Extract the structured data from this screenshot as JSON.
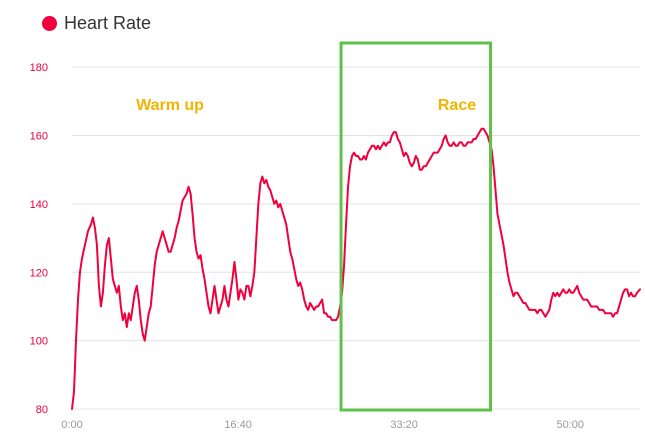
{
  "chart_data": {
    "type": "line",
    "xlabel": "",
    "ylabel": "",
    "ylim": [
      80,
      190
    ],
    "xlim": [
      0,
      57
    ],
    "x_unit": "minutes",
    "x_ticks": [
      {
        "value": 0,
        "label": "0:00"
      },
      {
        "value": 16.667,
        "label": "16:40"
      },
      {
        "value": 33.333,
        "label": "33:20"
      },
      {
        "value": 50,
        "label": "50:00"
      }
    ],
    "y_ticks": [
      80,
      100,
      120,
      140,
      160,
      180
    ],
    "grid": "horizontal",
    "legend": "top-left",
    "series": [
      {
        "name": "Heart Rate",
        "color": "#f0003c",
        "points": [
          [
            0.0,
            80
          ],
          [
            0.2,
            85
          ],
          [
            0.4,
            100
          ],
          [
            0.6,
            112
          ],
          [
            0.8,
            120
          ],
          [
            1.0,
            124
          ],
          [
            1.3,
            128
          ],
          [
            1.6,
            132
          ],
          [
            1.9,
            134
          ],
          [
            2.1,
            136
          ],
          [
            2.3,
            133
          ],
          [
            2.5,
            128
          ],
          [
            2.7,
            116
          ],
          [
            2.9,
            110
          ],
          [
            3.1,
            114
          ],
          [
            3.3,
            122
          ],
          [
            3.5,
            128
          ],
          [
            3.7,
            130
          ],
          [
            3.9,
            124
          ],
          [
            4.1,
            118
          ],
          [
            4.3,
            116
          ],
          [
            4.5,
            114
          ],
          [
            4.7,
            116
          ],
          [
            4.9,
            110
          ],
          [
            5.1,
            106
          ],
          [
            5.3,
            108
          ],
          [
            5.5,
            104
          ],
          [
            5.7,
            108
          ],
          [
            5.9,
            106
          ],
          [
            6.1,
            110
          ],
          [
            6.3,
            114
          ],
          [
            6.5,
            116
          ],
          [
            6.7,
            112
          ],
          [
            6.9,
            106
          ],
          [
            7.1,
            102
          ],
          [
            7.3,
            100
          ],
          [
            7.5,
            104
          ],
          [
            7.7,
            108
          ],
          [
            7.9,
            110
          ],
          [
            8.1,
            116
          ],
          [
            8.3,
            122
          ],
          [
            8.5,
            126
          ],
          [
            8.7,
            128
          ],
          [
            8.9,
            130
          ],
          [
            9.1,
            132
          ],
          [
            9.3,
            130
          ],
          [
            9.5,
            128
          ],
          [
            9.7,
            126
          ],
          [
            9.9,
            126
          ],
          [
            10.1,
            128
          ],
          [
            10.3,
            130
          ],
          [
            10.5,
            133
          ],
          [
            10.7,
            135
          ],
          [
            10.9,
            138
          ],
          [
            11.1,
            141
          ],
          [
            11.3,
            142
          ],
          [
            11.5,
            143
          ],
          [
            11.7,
            145
          ],
          [
            11.9,
            143
          ],
          [
            12.1,
            137
          ],
          [
            12.3,
            130
          ],
          [
            12.5,
            126
          ],
          [
            12.7,
            124
          ],
          [
            12.9,
            125
          ],
          [
            13.1,
            121
          ],
          [
            13.3,
            118
          ],
          [
            13.5,
            114
          ],
          [
            13.7,
            110
          ],
          [
            13.9,
            108
          ],
          [
            14.1,
            112
          ],
          [
            14.3,
            116
          ],
          [
            14.5,
            112
          ],
          [
            14.7,
            108
          ],
          [
            14.9,
            110
          ],
          [
            15.1,
            112
          ],
          [
            15.3,
            116
          ],
          [
            15.5,
            112
          ],
          [
            15.7,
            110
          ],
          [
            15.9,
            114
          ],
          [
            16.1,
            118
          ],
          [
            16.3,
            123
          ],
          [
            16.5,
            118
          ],
          [
            16.7,
            112
          ],
          [
            16.9,
            115
          ],
          [
            17.1,
            114
          ],
          [
            17.3,
            112
          ],
          [
            17.5,
            116
          ],
          [
            17.7,
            116
          ],
          [
            17.9,
            113
          ],
          [
            18.1,
            116
          ],
          [
            18.3,
            120
          ],
          [
            18.5,
            130
          ],
          [
            18.7,
            140
          ],
          [
            18.9,
            146
          ],
          [
            19.1,
            148
          ],
          [
            19.3,
            146
          ],
          [
            19.5,
            147
          ],
          [
            19.7,
            145
          ],
          [
            19.9,
            144
          ],
          [
            20.1,
            142
          ],
          [
            20.3,
            140
          ],
          [
            20.5,
            141
          ],
          [
            20.7,
            139
          ],
          [
            20.9,
            140
          ],
          [
            21.1,
            138
          ],
          [
            21.3,
            136
          ],
          [
            21.5,
            134
          ],
          [
            21.7,
            130
          ],
          [
            21.9,
            126
          ],
          [
            22.1,
            124
          ],
          [
            22.3,
            121
          ],
          [
            22.5,
            118
          ],
          [
            22.7,
            116
          ],
          [
            22.9,
            117
          ],
          [
            23.1,
            115
          ],
          [
            23.3,
            112
          ],
          [
            23.5,
            110
          ],
          [
            23.7,
            109
          ],
          [
            23.9,
            111
          ],
          [
            24.1,
            110
          ],
          [
            24.3,
            109
          ],
          [
            24.5,
            110
          ],
          [
            24.7,
            110
          ],
          [
            24.9,
            111
          ],
          [
            25.1,
            112
          ],
          [
            25.3,
            108
          ],
          [
            25.5,
            108
          ],
          [
            25.7,
            107
          ],
          [
            25.9,
            107
          ],
          [
            26.1,
            106
          ],
          [
            26.3,
            106
          ],
          [
            26.5,
            106
          ],
          [
            26.7,
            107
          ],
          [
            26.9,
            110
          ],
          [
            27.1,
            114
          ],
          [
            27.3,
            122
          ],
          [
            27.5,
            134
          ],
          [
            27.7,
            145
          ],
          [
            27.9,
            151
          ],
          [
            28.1,
            154
          ],
          [
            28.3,
            155
          ],
          [
            28.5,
            154
          ],
          [
            28.7,
            154
          ],
          [
            28.9,
            153
          ],
          [
            29.1,
            153
          ],
          [
            29.3,
            154
          ],
          [
            29.5,
            153
          ],
          [
            29.7,
            155
          ],
          [
            29.9,
            156
          ],
          [
            30.1,
            157
          ],
          [
            30.3,
            157
          ],
          [
            30.5,
            156
          ],
          [
            30.7,
            157
          ],
          [
            30.9,
            156
          ],
          [
            31.1,
            157
          ],
          [
            31.3,
            158
          ],
          [
            31.5,
            157
          ],
          [
            31.7,
            158
          ],
          [
            31.9,
            158
          ],
          [
            32.1,
            160
          ],
          [
            32.3,
            161
          ],
          [
            32.5,
            161
          ],
          [
            32.7,
            159
          ],
          [
            32.9,
            158
          ],
          [
            33.1,
            156
          ],
          [
            33.3,
            154
          ],
          [
            33.5,
            155
          ],
          [
            33.7,
            154
          ],
          [
            33.9,
            152
          ],
          [
            34.1,
            151
          ],
          [
            34.3,
            152
          ],
          [
            34.5,
            154
          ],
          [
            34.7,
            153
          ],
          [
            34.9,
            150
          ],
          [
            35.1,
            150
          ],
          [
            35.3,
            151
          ],
          [
            35.5,
            151
          ],
          [
            35.7,
            152
          ],
          [
            35.9,
            153
          ],
          [
            36.1,
            154
          ],
          [
            36.3,
            155
          ],
          [
            36.5,
            155
          ],
          [
            36.7,
            155
          ],
          [
            36.9,
            156
          ],
          [
            37.1,
            157
          ],
          [
            37.3,
            159
          ],
          [
            37.5,
            160
          ],
          [
            37.7,
            158
          ],
          [
            37.9,
            157
          ],
          [
            38.1,
            157
          ],
          [
            38.3,
            158
          ],
          [
            38.5,
            157
          ],
          [
            38.7,
            157
          ],
          [
            38.9,
            158
          ],
          [
            39.1,
            158
          ],
          [
            39.3,
            157
          ],
          [
            39.5,
            157
          ],
          [
            39.7,
            158
          ],
          [
            39.9,
            158
          ],
          [
            40.1,
            158
          ],
          [
            40.3,
            159
          ],
          [
            40.5,
            159
          ],
          [
            40.7,
            160
          ],
          [
            40.9,
            161
          ],
          [
            41.1,
            162
          ],
          [
            41.3,
            162
          ],
          [
            41.5,
            161
          ],
          [
            41.7,
            160
          ],
          [
            41.9,
            158
          ],
          [
            42.1,
            156
          ],
          [
            42.3,
            151
          ],
          [
            42.5,
            144
          ],
          [
            42.7,
            137
          ],
          [
            42.9,
            134
          ],
          [
            43.1,
            131
          ],
          [
            43.3,
            128
          ],
          [
            43.5,
            124
          ],
          [
            43.7,
            120
          ],
          [
            43.9,
            117
          ],
          [
            44.1,
            115
          ],
          [
            44.3,
            113
          ],
          [
            44.5,
            114
          ],
          [
            44.7,
            114
          ],
          [
            44.9,
            113
          ],
          [
            45.1,
            112
          ],
          [
            45.3,
            111
          ],
          [
            45.5,
            111
          ],
          [
            45.7,
            110
          ],
          [
            45.9,
            109
          ],
          [
            46.1,
            109
          ],
          [
            46.3,
            109
          ],
          [
            46.5,
            109
          ],
          [
            46.7,
            108
          ],
          [
            46.9,
            109
          ],
          [
            47.1,
            109
          ],
          [
            47.3,
            108
          ],
          [
            47.5,
            107
          ],
          [
            47.7,
            108
          ],
          [
            47.9,
            109
          ],
          [
            48.1,
            112
          ],
          [
            48.3,
            114
          ],
          [
            48.5,
            113
          ],
          [
            48.7,
            114
          ],
          [
            48.9,
            113
          ],
          [
            49.1,
            114
          ],
          [
            49.3,
            115
          ],
          [
            49.5,
            114
          ],
          [
            49.7,
            114
          ],
          [
            49.9,
            115
          ],
          [
            50.1,
            114
          ],
          [
            50.3,
            114
          ],
          [
            50.5,
            115
          ],
          [
            50.7,
            116
          ],
          [
            50.9,
            114
          ],
          [
            51.1,
            113
          ],
          [
            51.3,
            112
          ],
          [
            51.5,
            112
          ],
          [
            51.7,
            112
          ],
          [
            51.9,
            111
          ],
          [
            52.1,
            110
          ],
          [
            52.3,
            110
          ],
          [
            52.5,
            110
          ],
          [
            52.7,
            110
          ],
          [
            52.9,
            109
          ],
          [
            53.1,
            109
          ],
          [
            53.3,
            109
          ],
          [
            53.5,
            108
          ],
          [
            53.7,
            108
          ],
          [
            53.9,
            108
          ],
          [
            54.1,
            108
          ],
          [
            54.3,
            107
          ],
          [
            54.5,
            108
          ],
          [
            54.7,
            108
          ],
          [
            54.9,
            110
          ],
          [
            55.1,
            112
          ],
          [
            55.3,
            114
          ],
          [
            55.5,
            115
          ],
          [
            55.7,
            115
          ],
          [
            55.9,
            113
          ],
          [
            56.1,
            114
          ],
          [
            56.3,
            113
          ],
          [
            56.5,
            113
          ],
          [
            56.7,
            114
          ],
          [
            57.0,
            115
          ]
        ]
      }
    ],
    "annotations": [
      {
        "text": "Warm up",
        "color": "#f2b400"
      },
      {
        "text": "Race",
        "color": "#f2b400"
      }
    ],
    "highlight": {
      "from_x": 27.0,
      "to_x": 42.0,
      "y_from": 80,
      "y_to": 190,
      "color": "#5ec24a"
    }
  },
  "colors": {
    "line": "#f0003c",
    "axis_text": "#f0003c",
    "grid": "#e3e3e3",
    "x_tick_text": "#999999",
    "highlight_box": "#5ec24a",
    "annotation": "#f2b400"
  }
}
